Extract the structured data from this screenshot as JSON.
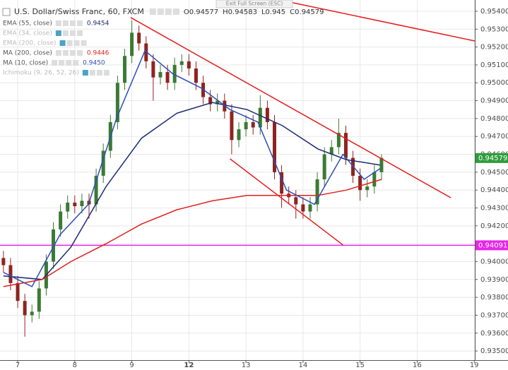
{
  "chart_data": {
    "type": "candlestick",
    "title": "U.S. Dollar/Swiss Franc, 60, FXCM",
    "ohlc": [
      {
        "label": "O",
        "value": 0.94577
      },
      {
        "label": "H",
        "value": 0.94583
      },
      {
        "label": "L",
        "value": 0.945
      },
      {
        "label": "C",
        "value": 0.94579
      }
    ],
    "button": "Exit Full Screen (ESC)",
    "up_color": "#3b7a34",
    "down_color": "#8e2420",
    "x": [
      -0.25,
      -0.125,
      0,
      0.125,
      0.25,
      0.375,
      0.5,
      0.625,
      0.75,
      0.875,
      1,
      1.125,
      1.25,
      1.375,
      1.5,
      1.625,
      1.75,
      1.875,
      2,
      2.125,
      2.25,
      2.375,
      2.5,
      2.625,
      2.75,
      2.875,
      3,
      3.125,
      3.25,
      3.375,
      3.5,
      3.625,
      3.75,
      3.875,
      4,
      4.125,
      4.25,
      4.375,
      4.5,
      4.625,
      4.75,
      4.875,
      5,
      5.125,
      5.25,
      5.375,
      5.5,
      5.625,
      5.75,
      5.875,
      6,
      6.125,
      6.25,
      6.375
    ],
    "open": [
      0.9402,
      0.9398,
      0.9388,
      0.9378,
      0.937,
      0.9372,
      0.9385,
      0.94,
      0.9418,
      0.9428,
      0.9433,
      0.9431,
      0.9434,
      0.9432,
      0.9448,
      0.9462,
      0.9478,
      0.95,
      0.9515,
      0.9528,
      0.9522,
      0.9512,
      0.9503,
      0.9506,
      0.95,
      0.951,
      0.9512,
      0.9508,
      0.95,
      0.9492,
      0.9488,
      0.949,
      0.9484,
      0.9468,
      0.9474,
      0.9478,
      0.9475,
      0.9486,
      0.9478,
      0.945,
      0.9438,
      0.9436,
      0.9432,
      0.9428,
      0.9432,
      0.9446,
      0.946,
      0.9464,
      0.9472,
      0.9458,
      0.9448,
      0.944,
      0.9442,
      0.945
    ],
    "high": [
      0.9406,
      0.9402,
      0.9392,
      0.9382,
      0.9376,
      0.9389,
      0.9404,
      0.9422,
      0.9432,
      0.9437,
      0.9437,
      0.9438,
      0.9438,
      0.9452,
      0.9466,
      0.9482,
      0.9504,
      0.9519,
      0.9535,
      0.9532,
      0.9526,
      0.9516,
      0.951,
      0.951,
      0.9514,
      0.9516,
      0.9516,
      0.9512,
      0.9504,
      0.9496,
      0.9494,
      0.9494,
      0.9488,
      0.9478,
      0.9482,
      0.9482,
      0.9493,
      0.949,
      0.9482,
      0.9454,
      0.9442,
      0.944,
      0.9436,
      0.9436,
      0.945,
      0.9464,
      0.9468,
      0.948,
      0.9476,
      0.9462,
      0.9452,
      0.9446,
      0.9454,
      0.946
    ],
    "low": [
      0.9394,
      0.9384,
      0.9374,
      0.9358,
      0.9366,
      0.9368,
      0.9381,
      0.9396,
      0.9414,
      0.9424,
      0.9427,
      0.9427,
      0.9424,
      0.9428,
      0.9444,
      0.9458,
      0.9474,
      0.9496,
      0.9511,
      0.9518,
      0.9508,
      0.949,
      0.9499,
      0.9496,
      0.9496,
      0.9506,
      0.9504,
      0.9496,
      0.9488,
      0.9484,
      0.9484,
      0.948,
      0.946,
      0.9464,
      0.947,
      0.9471,
      0.9471,
      0.9474,
      0.9446,
      0.943,
      0.9432,
      0.9424,
      0.9424,
      0.9424,
      0.9428,
      0.9442,
      0.9456,
      0.946,
      0.9454,
      0.9444,
      0.9434,
      0.9436,
      0.9438,
      0.9446
    ],
    "close": [
      0.9398,
      0.9388,
      0.9378,
      0.937,
      0.9372,
      0.9385,
      0.94,
      0.9418,
      0.9428,
      0.9433,
      0.9431,
      0.9434,
      0.9432,
      0.9448,
      0.9462,
      0.9478,
      0.95,
      0.9515,
      0.9528,
      0.9522,
      0.9512,
      0.9503,
      0.9506,
      0.95,
      0.951,
      0.9512,
      0.9508,
      0.95,
      0.9492,
      0.9488,
      0.949,
      0.9484,
      0.9468,
      0.9474,
      0.9478,
      0.9475,
      0.9486,
      0.9478,
      0.945,
      0.9438,
      0.9436,
      0.9432,
      0.9428,
      0.9432,
      0.9446,
      0.946,
      0.9464,
      0.9472,
      0.9458,
      0.9448,
      0.944,
      0.9442,
      0.945,
      0.9458
    ],
    "series": [
      {
        "name": "EMA (55, close)",
        "value": 0.9454,
        "color": "#1c2a74",
        "x": [
          -0.25,
          0.43,
          0.93,
          1.55,
          2.17,
          2.79,
          3.41,
          4.02,
          4.64,
          5.26,
          5.76,
          6.35
        ],
        "values": [
          0.9392,
          0.939,
          0.9408,
          0.9442,
          0.9469,
          0.9483,
          0.9489,
          0.9485,
          0.9476,
          0.9463,
          0.9457,
          0.9454
        ]
      },
      {
        "name": "EMA (34, close)"
      },
      {
        "name": "EMA (200, close)"
      },
      {
        "name": "MA (200, close)",
        "value": 0.9446,
        "color": "#e0211d",
        "x": [
          -0.25,
          0.43,
          0.93,
          1.55,
          2.17,
          2.79,
          3.41,
          4.02,
          4.64,
          5.26,
          5.76,
          6.38
        ],
        "values": [
          0.9386,
          0.939,
          0.94,
          0.941,
          0.9421,
          0.9429,
          0.9434,
          0.9437,
          0.9437,
          0.9437,
          0.944,
          0.9446
        ]
      },
      {
        "name": "MA (10, close)",
        "value": 0.945,
        "value_label": "0.9450",
        "color": "#2d4fb5",
        "x": [
          -0.25,
          0.25,
          0.74,
          1.24,
          1.73,
          2.23,
          2.72,
          3.22,
          3.72,
          4.21,
          4.71,
          5.2,
          5.7,
          6.07,
          6.35
        ],
        "values": [
          0.9394,
          0.9386,
          0.9415,
          0.9432,
          0.948,
          0.9518,
          0.9505,
          0.9497,
          0.9485,
          0.9478,
          0.944,
          0.9432,
          0.946,
          0.9446,
          0.9452
        ]
      },
      {
        "name": "Ichimoku (9, 26, 52, 26)"
      }
    ],
    "trendlines": [
      {
        "color": "#e81c1c",
        "x": [
          1.98,
          7.59
        ],
        "y": [
          0.95365,
          0.94357
        ]
      },
      {
        "color": "#e81c1c",
        "x": [
          3.72,
          5.7
        ],
        "y": [
          0.94575,
          0.94093
        ]
      },
      {
        "color": "#e81c1c",
        "x": [
          4.77,
          8.01
        ],
        "y": [
          0.95451,
          0.95234
        ]
      }
    ],
    "hline": {
      "value": 0.94091,
      "color": "#e626e6"
    },
    "last_price": {
      "value": 0.94579,
      "color": "#2e9c3c"
    },
    "xlim": [
      -0.31,
      8.01
    ],
    "ylim": [
      0.93449,
      0.95463
    ],
    "xticks": [
      {
        "value": 0,
        "label": "7"
      },
      {
        "value": 1,
        "label": "8"
      },
      {
        "value": 2,
        "label": "9"
      },
      {
        "value": 3,
        "label": "12"
      },
      {
        "value": 4,
        "label": "13"
      },
      {
        "value": 5,
        "label": "14"
      },
      {
        "value": 6,
        "label": "15"
      },
      {
        "value": 7,
        "label": "16"
      },
      {
        "value": 8,
        "label": "19"
      }
    ],
    "yticks": [
      {
        "value": 0.954,
        "label": "0.95400"
      },
      {
        "value": 0.953,
        "label": "0.95300"
      },
      {
        "value": 0.952,
        "label": "0.95200"
      },
      {
        "value": 0.951,
        "label": "0.95100"
      },
      {
        "value": 0.95,
        "label": "0.95000"
      },
      {
        "value": 0.949,
        "label": "0.94900"
      },
      {
        "value": 0.948,
        "label": "0.94800"
      },
      {
        "value": 0.947,
        "label": "0.94700"
      },
      {
        "value": 0.946,
        "label": "0.94600"
      },
      {
        "value": 0.945,
        "label": "0.94500"
      },
      {
        "value": 0.944,
        "label": "0.94400"
      },
      {
        "value": 0.943,
        "label": "0.94300"
      },
      {
        "value": 0.942,
        "label": "0.94200"
      },
      {
        "value": 0.941,
        "label": "0.94100"
      },
      {
        "value": 0.94,
        "label": "0.94000"
      },
      {
        "value": 0.939,
        "label": "0.93900"
      },
      {
        "value": 0.938,
        "label": "0.93800"
      },
      {
        "value": 0.937,
        "label": "0.93700"
      },
      {
        "value": 0.936,
        "label": "0.93600"
      },
      {
        "value": 0.935,
        "label": "0.93500"
      }
    ],
    "grid": true
  }
}
